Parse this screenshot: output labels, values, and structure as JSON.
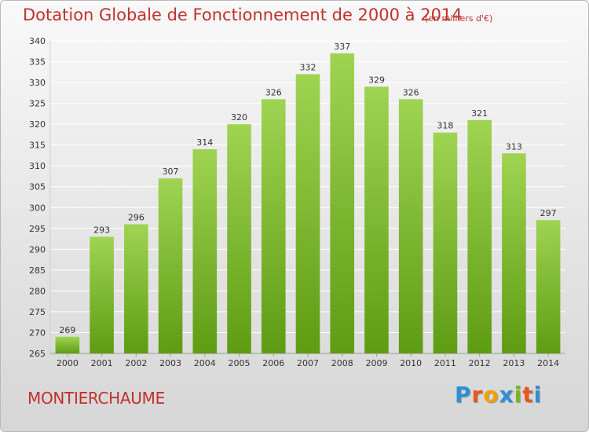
{
  "title": "Dotation Globale de Fonctionnement de 2000 à 2014",
  "unit_label": "(en milliers d'€)",
  "commune": "MONTIERCHAUME",
  "logo": {
    "letters": [
      "P",
      "r",
      "o",
      "x",
      "i",
      "t",
      "i"
    ],
    "colors": [
      "#2e8fd6",
      "#e8581c",
      "#f0a000",
      "#2e8fd6",
      "#7ab51d",
      "#e8581c",
      "#2e8fd6"
    ]
  },
  "colors": {
    "bar_top": "#9fd452",
    "bar_bottom": "#5e9c12",
    "title": "#c0302c",
    "grid": "#ffffff",
    "text": "#333333"
  },
  "chart_data": {
    "type": "bar",
    "title": "Dotation Globale de Fonctionnement de 2000 à 2014",
    "subtitle": "(en milliers d'€)",
    "categories": [
      "2000",
      "2001",
      "2002",
      "2003",
      "2004",
      "2005",
      "2006",
      "2007",
      "2008",
      "2009",
      "2010",
      "2011",
      "2012",
      "2013",
      "2014"
    ],
    "values": [
      269,
      293,
      296,
      307,
      314,
      320,
      326,
      332,
      337,
      329,
      326,
      318,
      321,
      313,
      297
    ],
    "ylim": [
      265,
      340
    ],
    "yticks": [
      265,
      270,
      275,
      280,
      285,
      290,
      295,
      300,
      305,
      310,
      315,
      320,
      325,
      330,
      335,
      340
    ],
    "grid": true,
    "data_labels": true
  }
}
